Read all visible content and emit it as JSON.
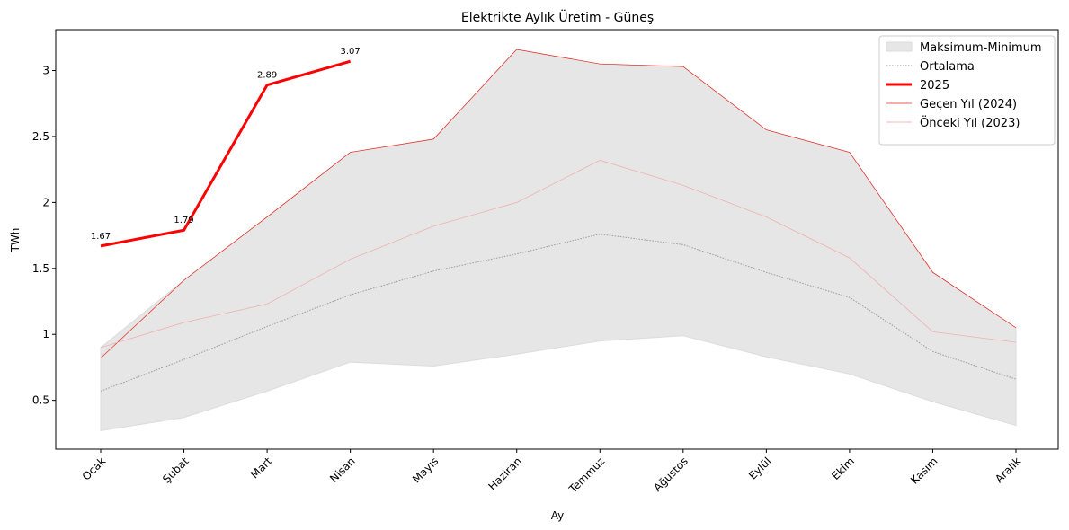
{
  "chart_data": {
    "type": "line",
    "title": "Elektrikte Aylık Üretim - Güneş",
    "xlabel": "Ay",
    "ylabel": "TWh",
    "categories": [
      "Ocak",
      "Şubat",
      "Mart",
      "Nisan",
      "Mayıs",
      "Haziran",
      "Temmuz",
      "Ağustos",
      "Eylül",
      "Ekim",
      "Kasım",
      "Aralık"
    ],
    "band": {
      "name": "Maksimum-Minimum",
      "color": "#e6e6e6",
      "upper": [
        0.9,
        1.41,
        1.89,
        2.38,
        2.48,
        3.16,
        3.05,
        3.03,
        2.55,
        2.38,
        1.47,
        1.05
      ],
      "lower": [
        0.27,
        0.37,
        0.57,
        0.79,
        0.76,
        0.85,
        0.95,
        0.99,
        0.83,
        0.7,
        0.49,
        0.31
      ]
    },
    "series": [
      {
        "name": "Ortalama",
        "color": "#999999",
        "width": 1,
        "dash": "1.5 1.5",
        "values": [
          0.57,
          0.81,
          1.06,
          1.3,
          1.48,
          1.61,
          1.76,
          1.68,
          1.47,
          1.28,
          0.87,
          0.66
        ]
      },
      {
        "name": "2025",
        "color": "#ff0000",
        "width": 3,
        "labels": true,
        "values": [
          1.67,
          1.79,
          2.89,
          3.07,
          null,
          null,
          null,
          null,
          null,
          null,
          null,
          null
        ]
      },
      {
        "name": "Geçen Yıl (2024)",
        "color": "#e8251c",
        "width": 0.7,
        "values": [
          0.82,
          1.41,
          1.89,
          2.38,
          2.48,
          3.16,
          3.05,
          3.03,
          2.55,
          2.38,
          1.47,
          1.05
        ]
      },
      {
        "name": "Önceki Yıl (2023)",
        "color": "#f2a8a8",
        "width": 0.7,
        "values": [
          0.9,
          1.09,
          1.23,
          1.57,
          1.82,
          2.0,
          2.32,
          2.13,
          1.89,
          1.58,
          1.02,
          0.94
        ]
      }
    ],
    "ylim": [
      0.13,
      3.31
    ],
    "yticks": [
      0.5,
      1.0,
      1.5,
      2.0,
      2.5,
      3.0
    ],
    "legend": "upper right"
  }
}
